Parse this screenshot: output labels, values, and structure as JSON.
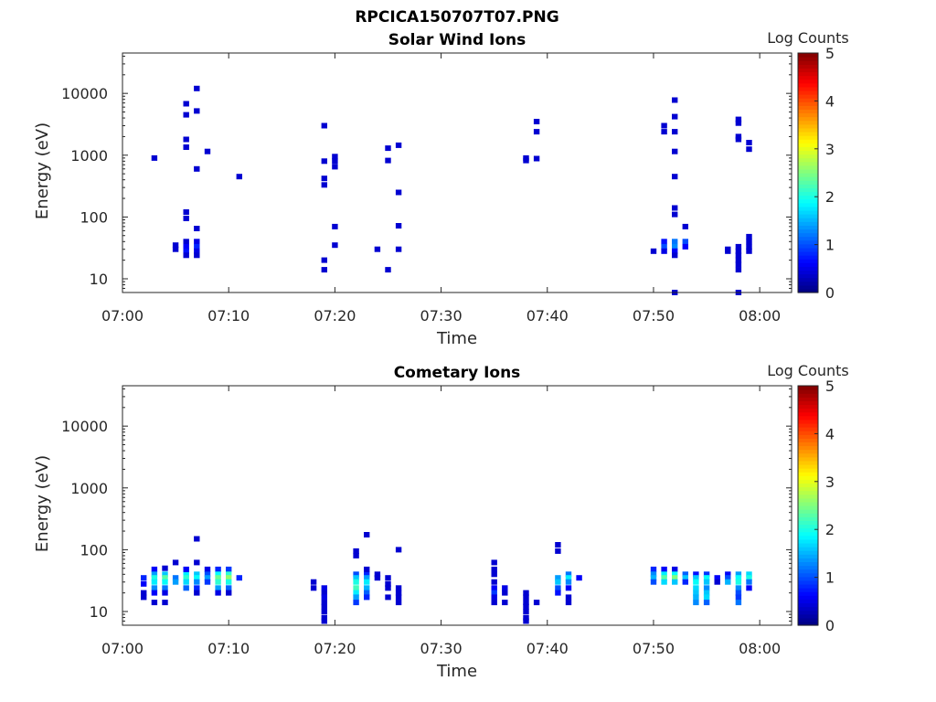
{
  "figure_title": "RPCICA150707T07.PNG",
  "chart_data": [
    {
      "type": "heatmap",
      "title": "Solar Wind Ions",
      "xlabel": "Time",
      "ylabel": "Energy (eV)",
      "x_ticks": [
        "07:00",
        "07:10",
        "07:20",
        "07:30",
        "07:40",
        "07:50",
        "08:00"
      ],
      "x_range": [
        "07:00",
        "08:03"
      ],
      "y_scale": "log",
      "y_ticks": [
        "10",
        "100",
        "1000",
        "10000"
      ],
      "y_range": [
        6,
        45000
      ],
      "colorbar": {
        "label": "Log Counts",
        "ticks": [
          "0",
          "1",
          "2",
          "3",
          "4",
          "5"
        ],
        "range": [
          0,
          5
        ],
        "colormap": "jet"
      },
      "cells": [
        [
          "07:03",
          900,
          0.1
        ],
        [
          "07:06",
          6800,
          0.1
        ],
        [
          "07:06",
          4500,
          0.1
        ],
        [
          "07:07",
          5200,
          0.1
        ],
        [
          "07:07",
          12000,
          0.1
        ],
        [
          "07:06",
          1800,
          0.1
        ],
        [
          "07:06",
          1350,
          0.1
        ],
        [
          "07:07",
          600,
          0.1
        ],
        [
          "07:08",
          1150,
          0.1
        ],
        [
          "07:11",
          450,
          0.1
        ],
        [
          "07:06",
          120,
          0.1
        ],
        [
          "07:06",
          95,
          0.1
        ],
        [
          "07:07",
          65,
          0.1
        ],
        [
          "07:05",
          35,
          0.2
        ],
        [
          "07:05",
          30,
          0.2
        ],
        [
          "07:06",
          40,
          0.3
        ],
        [
          "07:06",
          33,
          0.6
        ],
        [
          "07:06",
          28,
          0.7
        ],
        [
          "07:06",
          24,
          0.4
        ],
        [
          "07:07",
          40,
          0.5
        ],
        [
          "07:07",
          33,
          0.8
        ],
        [
          "07:07",
          28,
          0.5
        ],
        [
          "07:07",
          24,
          0.3
        ],
        [
          "07:19",
          3000,
          0.1
        ],
        [
          "07:19",
          800,
          0.1
        ],
        [
          "07:19",
          420,
          0.1
        ],
        [
          "07:19",
          330,
          0.1
        ],
        [
          "07:20",
          650,
          0.1
        ],
        [
          "07:20",
          950,
          0.1
        ],
        [
          "07:20",
          800,
          0.1
        ],
        [
          "07:20",
          70,
          0.1
        ],
        [
          "07:20",
          35,
          0.1
        ],
        [
          "07:19",
          20,
          0.1
        ],
        [
          "07:19",
          14,
          0.1
        ],
        [
          "07:25",
          1300,
          0.1
        ],
        [
          "07:26",
          1450,
          0.1
        ],
        [
          "07:25",
          820,
          0.1
        ],
        [
          "07:26",
          250,
          0.1
        ],
        [
          "07:26",
          72,
          0.1
        ],
        [
          "07:24",
          30,
          0.1
        ],
        [
          "07:26",
          30,
          0.1
        ],
        [
          "07:25",
          14,
          0.1
        ],
        [
          "07:38",
          900,
          0.1
        ],
        [
          "07:38",
          820,
          0.1
        ],
        [
          "07:39",
          880,
          0.1
        ],
        [
          "07:39",
          3500,
          0.1
        ],
        [
          "07:39",
          2400,
          0.1
        ],
        [
          "07:51",
          3000,
          0.1
        ],
        [
          "07:51",
          2400,
          0.1
        ],
        [
          "07:52",
          4200,
          0.1
        ],
        [
          "07:52",
          2400,
          0.1
        ],
        [
          "07:52",
          7800,
          0.1
        ],
        [
          "07:52",
          1150,
          0.1
        ],
        [
          "07:52",
          450,
          0.1
        ],
        [
          "07:52",
          140,
          0.2
        ],
        [
          "07:52",
          110,
          0.1
        ],
        [
          "07:53",
          70,
          0.1
        ],
        [
          "07:51",
          40,
          0.7
        ],
        [
          "07:51",
          33,
          1.0
        ],
        [
          "07:51",
          28,
          0.5
        ],
        [
          "07:52",
          40,
          1.2
        ],
        [
          "07:52",
          33,
          1.3
        ],
        [
          "07:52",
          28,
          0.6
        ],
        [
          "07:52",
          24,
          0.3
        ],
        [
          "07:53",
          40,
          1.0
        ],
        [
          "07:53",
          33,
          0.6
        ],
        [
          "07:50",
          28,
          0.3
        ],
        [
          "07:58",
          3300,
          0.1
        ],
        [
          "07:58",
          3800,
          0.1
        ],
        [
          "07:58",
          2000,
          0.1
        ],
        [
          "07:58",
          1800,
          0.1
        ],
        [
          "07:59",
          1600,
          0.1
        ],
        [
          "07:59",
          1250,
          0.1
        ],
        [
          "07:57",
          30,
          0.3
        ],
        [
          "07:57",
          28,
          0.2
        ],
        [
          "07:58",
          33,
          0.3
        ],
        [
          "07:58",
          28,
          0.3
        ],
        [
          "07:58",
          24,
          0.4
        ],
        [
          "07:58",
          20,
          0.2
        ],
        [
          "07:58",
          17,
          0.1
        ],
        [
          "07:59",
          28,
          0.3
        ],
        [
          "07:59",
          33,
          0.2
        ],
        [
          "07:59",
          48,
          0.2
        ],
        [
          "07:59",
          40,
          0.2
        ],
        [
          "07:58",
          14,
          0.1
        ],
        [
          "07:52",
          6,
          0.1
        ],
        [
          "07:58",
          6,
          0.1
        ]
      ]
    },
    {
      "type": "heatmap",
      "title": "Cometary Ions",
      "xlabel": "Time",
      "ylabel": "Energy (eV)",
      "x_ticks": [
        "07:00",
        "07:10",
        "07:20",
        "07:30",
        "07:40",
        "07:50",
        "08:00"
      ],
      "x_range": [
        "07:00",
        "08:03"
      ],
      "y_scale": "log",
      "y_ticks": [
        "10",
        "100",
        "1000",
        "10000"
      ],
      "y_range": [
        6,
        45000
      ],
      "colorbar": {
        "label": "Log Counts",
        "ticks": [
          "0",
          "1",
          "2",
          "3",
          "4",
          "5"
        ],
        "range": [
          0,
          5
        ],
        "colormap": "jet"
      },
      "cells": [
        [
          "07:02",
          35,
          0.8
        ],
        [
          "07:02",
          28,
          0.6
        ],
        [
          "07:02",
          20,
          0.4
        ],
        [
          "07:02",
          17,
          0.3
        ],
        [
          "07:03",
          48,
          0.6
        ],
        [
          "07:03",
          40,
          1.4
        ],
        [
          "07:03",
          35,
          2.0
        ],
        [
          "07:03",
          30,
          1.8
        ],
        [
          "07:03",
          24,
          1.3
        ],
        [
          "07:03",
          20,
          0.6
        ],
        [
          "07:03",
          14,
          0.3
        ],
        [
          "07:04",
          40,
          1.6
        ],
        [
          "07:04",
          35,
          2.3
        ],
        [
          "07:04",
          30,
          1.9
        ],
        [
          "07:04",
          24,
          1.2
        ],
        [
          "07:04",
          20,
          0.5
        ],
        [
          "07:04",
          14,
          0.2
        ],
        [
          "07:04",
          50,
          0.3
        ],
        [
          "07:05",
          62,
          0.1
        ],
        [
          "07:05",
          35,
          1.2
        ],
        [
          "07:05",
          30,
          1.4
        ],
        [
          "07:06",
          40,
          1.8
        ],
        [
          "07:06",
          35,
          2.1
        ],
        [
          "07:06",
          30,
          1.7
        ],
        [
          "07:06",
          24,
          1.1
        ],
        [
          "07:06",
          48,
          0.6
        ],
        [
          "07:07",
          40,
          1.6
        ],
        [
          "07:07",
          35,
          1.9
        ],
        [
          "07:07",
          30,
          1.3
        ],
        [
          "07:07",
          24,
          0.8
        ],
        [
          "07:07",
          20,
          0.4
        ],
        [
          "07:07",
          62,
          0.1
        ],
        [
          "07:07",
          150,
          0.1
        ],
        [
          "07:08",
          48,
          0.5
        ],
        [
          "07:08",
          40,
          1.0
        ],
        [
          "07:08",
          35,
          1.4
        ],
        [
          "07:08",
          30,
          0.9
        ],
        [
          "07:09",
          48,
          0.8
        ],
        [
          "07:09",
          40,
          1.9
        ],
        [
          "07:09",
          35,
          2.4
        ],
        [
          "07:09",
          30,
          2.1
        ],
        [
          "07:09",
          24,
          1.4
        ],
        [
          "07:09",
          20,
          0.5
        ],
        [
          "07:10",
          48,
          0.9
        ],
        [
          "07:10",
          40,
          2.1
        ],
        [
          "07:10",
          35,
          2.6
        ],
        [
          "07:10",
          30,
          2.0
        ],
        [
          "07:10",
          24,
          1.1
        ],
        [
          "07:10",
          20,
          0.4
        ],
        [
          "07:11",
          35,
          0.8
        ],
        [
          "07:18",
          30,
          0.3
        ],
        [
          "07:18",
          24,
          0.4
        ],
        [
          "07:19",
          24,
          0.5
        ],
        [
          "07:19",
          20,
          0.4
        ],
        [
          "07:19",
          17,
          0.5
        ],
        [
          "07:19",
          14,
          0.4
        ],
        [
          "07:19",
          12,
          0.3
        ],
        [
          "07:19",
          10,
          0.2
        ],
        [
          "07:19",
          8,
          0.2
        ],
        [
          "07:19",
          7,
          0.1
        ],
        [
          "07:22",
          95,
          0.1
        ],
        [
          "07:22",
          80,
          0.1
        ],
        [
          "07:22",
          40,
          1.0
        ],
        [
          "07:22",
          35,
          1.6
        ],
        [
          "07:22",
          30,
          2.0
        ],
        [
          "07:22",
          24,
          2.2
        ],
        [
          "07:22",
          20,
          1.8
        ],
        [
          "07:22",
          17,
          1.4
        ],
        [
          "07:22",
          14,
          0.9
        ],
        [
          "07:23",
          40,
          0.8
        ],
        [
          "07:23",
          35,
          1.4
        ],
        [
          "07:23",
          30,
          1.8
        ],
        [
          "07:23",
          24,
          1.5
        ],
        [
          "07:23",
          20,
          1.1
        ],
        [
          "07:23",
          17,
          0.8
        ],
        [
          "07:23",
          175,
          0.1
        ],
        [
          "07:23",
          48,
          0.3
        ],
        [
          "07:24",
          40,
          0.4
        ],
        [
          "07:24",
          35,
          0.3
        ],
        [
          "07:26",
          100,
          0.1
        ],
        [
          "07:25",
          35,
          0.2
        ],
        [
          "07:25",
          28,
          0.3
        ],
        [
          "07:25",
          24,
          0.2
        ],
        [
          "07:26",
          24,
          0.4
        ],
        [
          "07:26",
          20,
          0.3
        ],
        [
          "07:26",
          17,
          0.2
        ],
        [
          "07:26",
          14,
          0.2
        ],
        [
          "07:25",
          17,
          0.2
        ],
        [
          "07:35",
          62,
          0.1
        ],
        [
          "07:35",
          40,
          0.2
        ],
        [
          "07:35",
          30,
          0.3
        ],
        [
          "07:35",
          24,
          0.6
        ],
        [
          "07:35",
          20,
          0.9
        ],
        [
          "07:35",
          17,
          0.5
        ],
        [
          "07:35",
          14,
          0.4
        ],
        [
          "07:36",
          24,
          0.5
        ],
        [
          "07:36",
          20,
          0.4
        ],
        [
          "07:36",
          14,
          0.2
        ],
        [
          "07:35",
          48,
          0.2
        ],
        [
          "07:38",
          20,
          0.1
        ],
        [
          "07:38",
          17,
          0.1
        ],
        [
          "07:38",
          14,
          0.1
        ],
        [
          "07:38",
          12,
          0.1
        ],
        [
          "07:38",
          10,
          0.1
        ],
        [
          "07:38",
          8,
          0.1
        ],
        [
          "07:38",
          7,
          0.1
        ],
        [
          "07:39",
          14,
          0.1
        ],
        [
          "07:41",
          120,
          0.1
        ],
        [
          "07:41",
          95,
          0.1
        ],
        [
          "07:41",
          35,
          1.4
        ],
        [
          "07:41",
          30,
          1.6
        ],
        [
          "07:41",
          24,
          1.0
        ],
        [
          "07:41",
          20,
          0.7
        ],
        [
          "07:42",
          40,
          1.2
        ],
        [
          "07:42",
          35,
          1.8
        ],
        [
          "07:42",
          30,
          1.3
        ],
        [
          "07:42",
          24,
          0.6
        ],
        [
          "07:42",
          17,
          0.3
        ],
        [
          "07:42",
          14,
          0.2
        ],
        [
          "07:43",
          35,
          0.6
        ],
        [
          "07:50",
          48,
          0.8
        ],
        [
          "07:50",
          40,
          1.3
        ],
        [
          "07:50",
          35,
          1.5
        ],
        [
          "07:50",
          30,
          1.0
        ],
        [
          "07:51",
          48,
          0.6
        ],
        [
          "07:51",
          40,
          1.8
        ],
        [
          "07:51",
          35,
          2.3
        ],
        [
          "07:51",
          30,
          1.7
        ],
        [
          "07:52",
          48,
          0.5
        ],
        [
          "07:52",
          40,
          1.9
        ],
        [
          "07:52",
          35,
          2.5
        ],
        [
          "07:52",
          30,
          1.6
        ],
        [
          "07:53",
          40,
          1.1
        ],
        [
          "07:53",
          35,
          1.6
        ],
        [
          "07:53",
          30,
          0.8
        ],
        [
          "07:54",
          40,
          0.7
        ],
        [
          "07:54",
          35,
          1.6
        ],
        [
          "07:54",
          30,
          1.9
        ],
        [
          "07:54",
          24,
          1.7
        ],
        [
          "07:54",
          20,
          1.6
        ],
        [
          "07:54",
          17,
          1.5
        ],
        [
          "07:54",
          14,
          1.3
        ],
        [
          "07:55",
          40,
          0.9
        ],
        [
          "07:55",
          35,
          1.9
        ],
        [
          "07:55",
          30,
          1.6
        ],
        [
          "07:55",
          24,
          1.3
        ],
        [
          "07:55",
          20,
          1.6
        ],
        [
          "07:55",
          17,
          1.7
        ],
        [
          "07:55",
          14,
          1.1
        ],
        [
          "07:56",
          35,
          0.6
        ],
        [
          "07:56",
          30,
          0.4
        ],
        [
          "07:57",
          40,
          0.6
        ],
        [
          "07:57",
          35,
          1.0
        ],
        [
          "07:57",
          30,
          1.5
        ],
        [
          "07:58",
          40,
          1.4
        ],
        [
          "07:58",
          35,
          1.9
        ],
        [
          "07:58",
          30,
          2.0
        ],
        [
          "07:58",
          24,
          1.3
        ],
        [
          "07:58",
          20,
          1.0
        ],
        [
          "07:58",
          17,
          0.9
        ],
        [
          "07:58",
          14,
          1.2
        ],
        [
          "07:59",
          40,
          1.7
        ],
        [
          "07:59",
          35,
          2.0
        ],
        [
          "07:59",
          30,
          1.2
        ],
        [
          "07:59",
          24,
          0.6
        ]
      ]
    }
  ]
}
